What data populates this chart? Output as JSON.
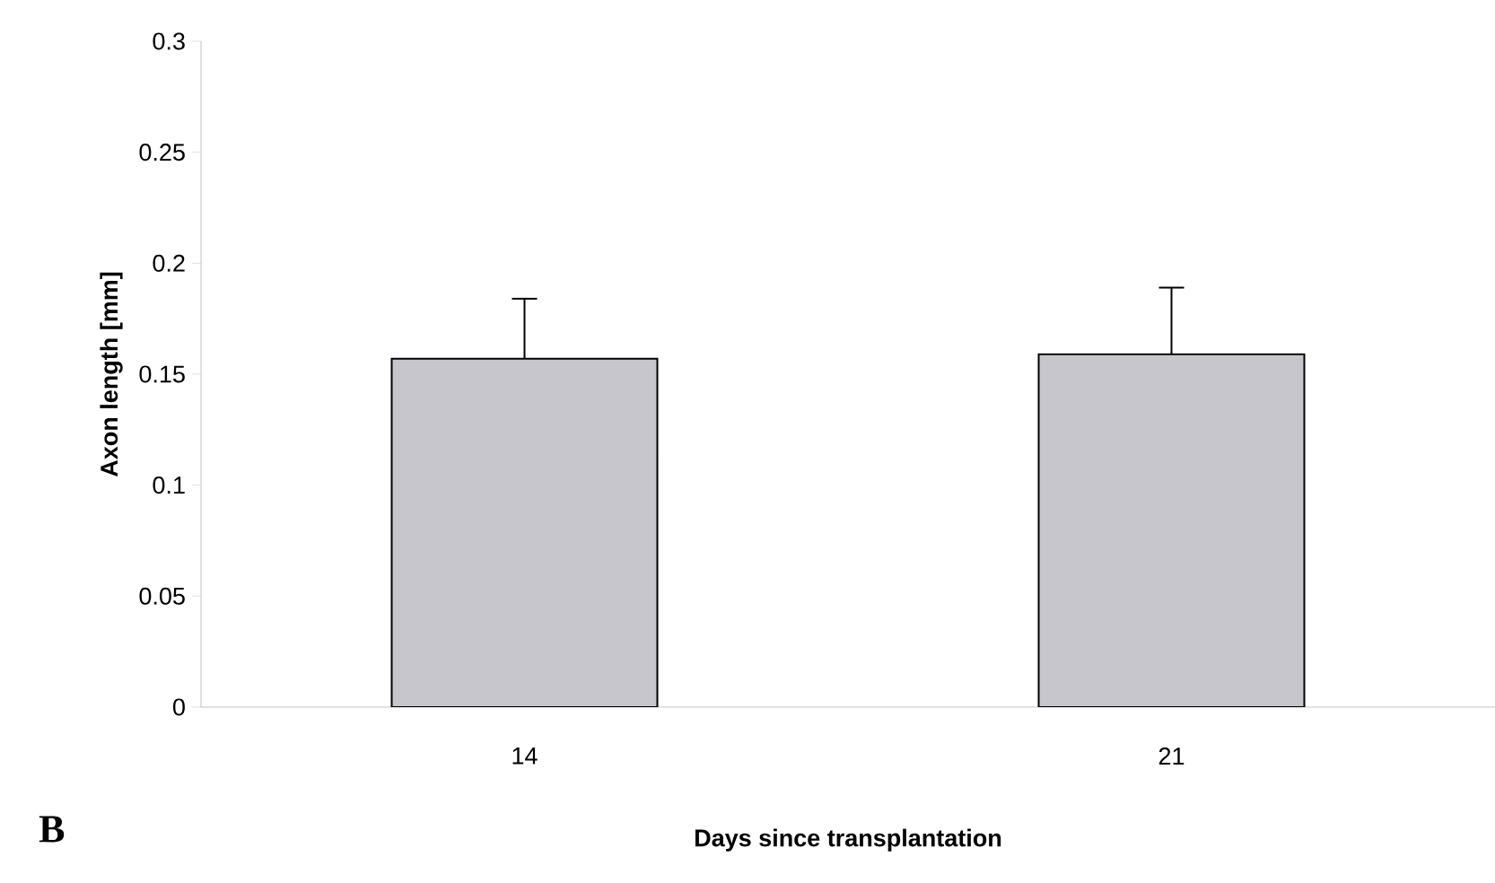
{
  "chart_data": {
    "type": "bar",
    "categories": [
      "14",
      "21"
    ],
    "values": [
      0.157,
      0.159
    ],
    "errors": [
      [
        0.157,
        0.184
      ],
      [
        0.159,
        0.189
      ]
    ],
    "color": "#c6c6cc",
    "xlabel": "Days since transplantation",
    "ylabel": "Axon length [mm]",
    "ylim": [
      0,
      0.3
    ],
    "yticks": [
      0,
      {
        "value": 0.05,
        "label": "0.05"
      },
      {
        "value": 0.1,
        "label": "0.1"
      },
      {
        "value": 0.15,
        "label": "0.15"
      },
      {
        "value": 0.2,
        "label": "0.2"
      },
      {
        "value": 0.25,
        "label": "0.25"
      },
      {
        "value": 0.3,
        "label": "0.3"
      }
    ],
    "grid": false,
    "annotations": [
      "B"
    ]
  }
}
